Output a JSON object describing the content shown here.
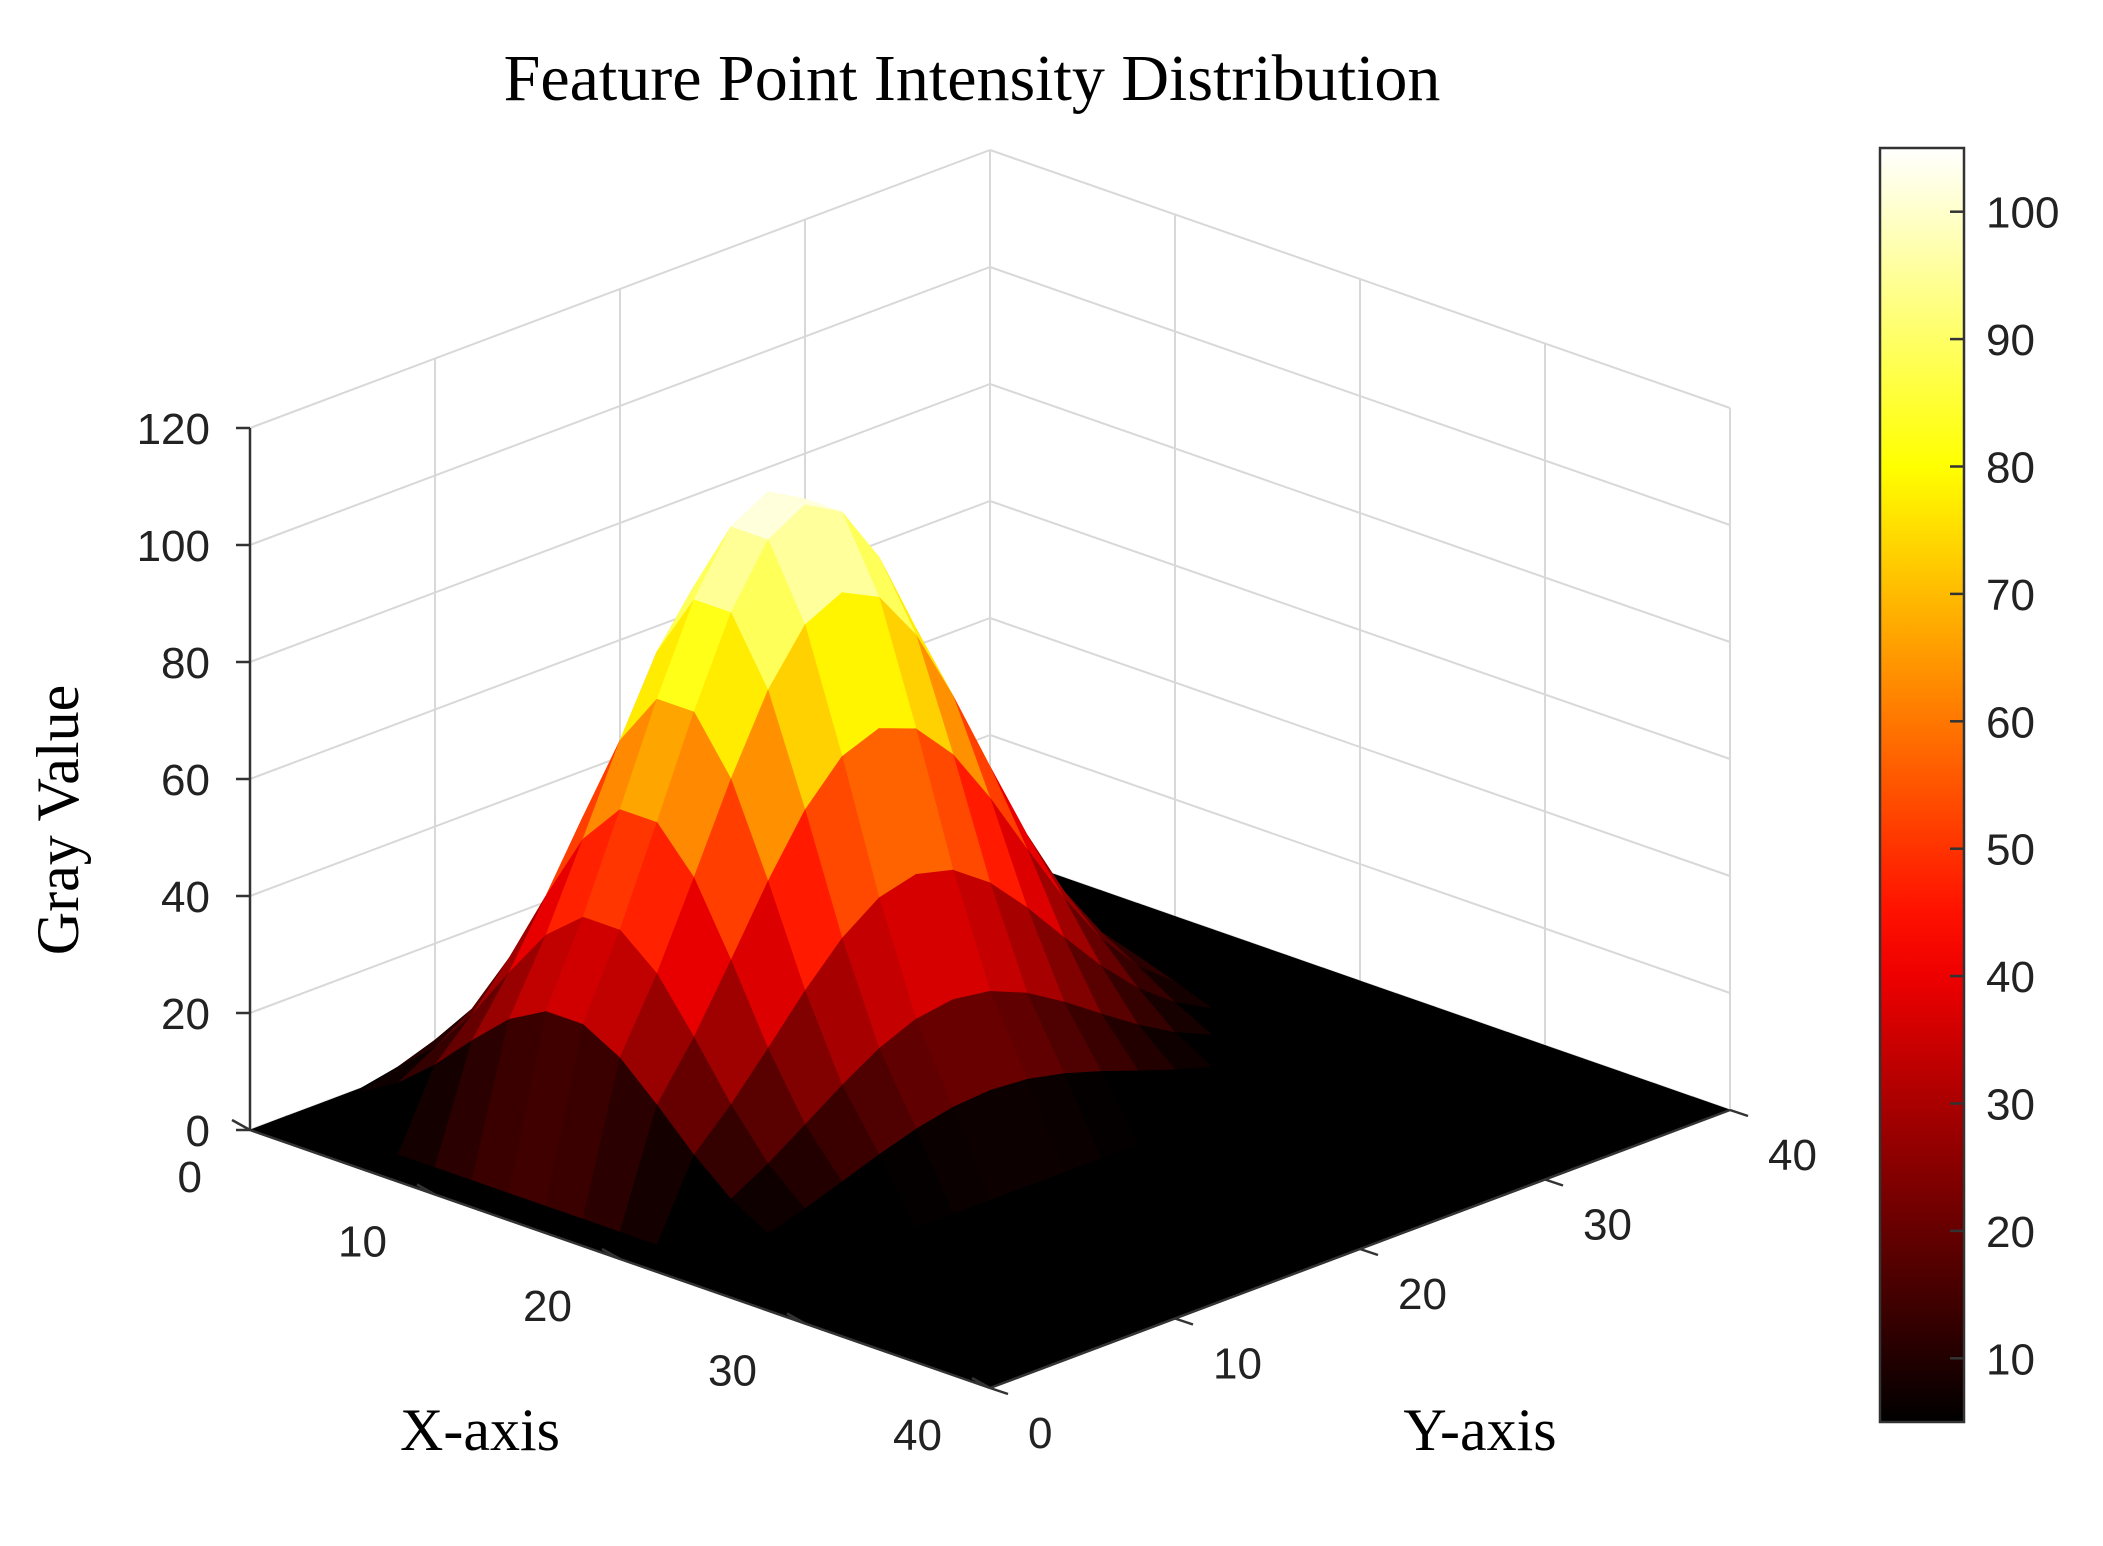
{
  "chart_data": {
    "type": "surface",
    "title": "Feature Point Intensity Distribution",
    "xlabel": "X-axis",
    "ylabel": "Y-axis",
    "zlabel": "Gray Value",
    "xlim": [
      0,
      40
    ],
    "ylim": [
      0,
      40
    ],
    "zlim": [
      0,
      120
    ],
    "x_ticks": [
      0,
      10,
      20,
      30,
      40
    ],
    "y_ticks": [
      0,
      10,
      20,
      30,
      40
    ],
    "z_ticks": [
      0,
      20,
      40,
      60,
      80,
      100,
      120
    ],
    "colormap": "hot",
    "colorbar": {
      "range": [
        5,
        105
      ],
      "ticks": [
        10,
        20,
        30,
        40,
        50,
        60,
        70,
        80,
        90,
        100
      ],
      "placement": "right"
    },
    "surface": {
      "grid_step": 2,
      "peak_value": 105,
      "peak_center": [
        13,
        16
      ],
      "spread_x": 5.5,
      "spread_y": 7.5,
      "support_x": [
        2,
        24
      ],
      "support_y": [
        3,
        33
      ],
      "baseline": 0
    },
    "grid": true
  }
}
